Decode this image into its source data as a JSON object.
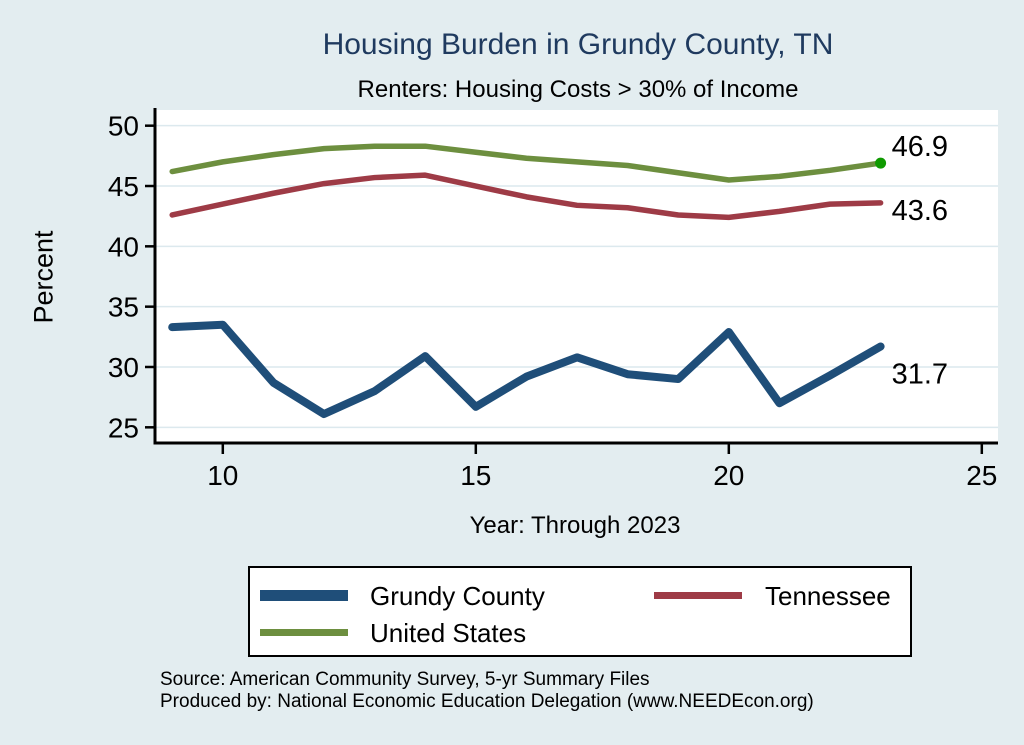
{
  "page": {
    "title": "Housing Burden in Grundy County, TN",
    "subtitle": "Renters: Housing Costs > 30% of Income",
    "title_color": "#1f3a5f",
    "background_color": "#e3edf0"
  },
  "chart_data": {
    "type": "line",
    "title": "Housing Burden in Grundy County, TN",
    "subtitle": "Renters: Housing Costs > 30% of Income",
    "xlabel": "Year: Through 2023",
    "ylabel": "Percent",
    "x": [
      9,
      10,
      11,
      12,
      13,
      14,
      15,
      16,
      17,
      18,
      19,
      20,
      21,
      22,
      23
    ],
    "series": [
      {
        "name": "Grundy County",
        "color": "#1f4e79",
        "line_width": 8,
        "values": [
          33.3,
          33.5,
          28.7,
          26.1,
          28.0,
          30.9,
          26.7,
          29.2,
          30.8,
          29.4,
          29.0,
          32.9,
          27.0,
          29.3,
          31.7
        ],
        "end_label": "31.7"
      },
      {
        "name": "Tennessee",
        "color": "#9e3b46",
        "line_width": 5.5,
        "values": [
          42.6,
          43.5,
          44.4,
          45.2,
          45.7,
          45.9,
          45.0,
          44.1,
          43.4,
          43.2,
          42.6,
          42.4,
          42.9,
          43.5,
          43.6
        ],
        "end_label": "43.6"
      },
      {
        "name": "United States",
        "color": "#6d8f3f",
        "line_width": 5.5,
        "values": [
          46.2,
          47.0,
          47.6,
          48.1,
          48.3,
          48.3,
          47.8,
          47.3,
          47.0,
          46.7,
          46.1,
          45.5,
          45.8,
          46.3,
          46.9
        ],
        "end_label": "46.9",
        "end_marker_color": "#0f9a00"
      }
    ],
    "xticks": [
      10,
      15,
      20,
      25
    ],
    "yticks": [
      25,
      30,
      35,
      40,
      45,
      50
    ],
    "xlim": [
      8.66,
      25.32
    ],
    "ylim": [
      23.7,
      51.3
    ],
    "grid": "horizontal",
    "gridline_color": "#dce9ee",
    "plot_background": "#ffffff",
    "legend_position": "bottom"
  },
  "legend": {
    "items": [
      {
        "label": "Grundy County"
      },
      {
        "label": "Tennessee"
      },
      {
        "label": "United States"
      }
    ]
  },
  "footer": {
    "source_line1": "Source: American Community Survey, 5-yr Summary Files",
    "source_line2": "Produced by: National Economic Education Delegation (www.NEEDEcon.org)"
  }
}
